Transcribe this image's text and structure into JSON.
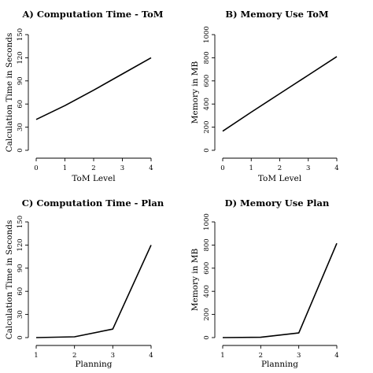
{
  "chart_data": [
    {
      "type": "line",
      "title": "A) Computation Time - ToM",
      "xlabel": "ToM Level",
      "ylabel": "Calculation Time in Seconds",
      "x": [
        0,
        1,
        2,
        3,
        4
      ],
      "xticks": [
        "0",
        "1",
        "2",
        "3",
        "4"
      ],
      "xlim": [
        0,
        4
      ],
      "yticks": [
        "0",
        "30",
        "60",
        "90",
        "120",
        "150"
      ],
      "ylim": [
        0,
        150
      ],
      "series": [
        {
          "values": [
            40,
            58,
            78,
            99,
            120
          ]
        }
      ],
      "grid": false
    },
    {
      "type": "line",
      "title": "B) Memory Use ToM",
      "xlabel": "ToM Level",
      "ylabel": "Memory in MB",
      "x": [
        0,
        1,
        2,
        3,
        4
      ],
      "xticks": [
        "0",
        "1",
        "2",
        "3",
        "4"
      ],
      "xlim": [
        0,
        4
      ],
      "yticks": [
        "0",
        "200",
        "400",
        "600",
        "800",
        "1000"
      ],
      "ylim": [
        0,
        1000
      ],
      "series": [
        {
          "values": [
            165,
            330,
            490,
            650,
            810
          ]
        }
      ],
      "grid": false
    },
    {
      "type": "line",
      "title": "C) Computation Time - Plan",
      "xlabel": "Planning",
      "ylabel": "Calculation Time in Seconds",
      "x": [
        1,
        2,
        3,
        4
      ],
      "xticks": [
        "1",
        "2",
        "3",
        "4"
      ],
      "xlim": [
        1,
        4
      ],
      "yticks": [
        "0",
        "30",
        "60",
        "90",
        "120",
        "150"
      ],
      "ylim": [
        0,
        150
      ],
      "series": [
        {
          "values": [
            0,
            1,
            11,
            120
          ]
        }
      ],
      "grid": false
    },
    {
      "type": "line",
      "title": "D) Memory Use Plan",
      "xlabel": "Planning",
      "ylabel": "Memory in MB",
      "x": [
        1,
        2,
        3,
        4
      ],
      "xticks": [
        "1",
        "2",
        "3",
        "4"
      ],
      "xlim": [
        1,
        4
      ],
      "yticks": [
        "0",
        "200",
        "400",
        "600",
        "800",
        "1000"
      ],
      "ylim": [
        0,
        1000
      ],
      "series": [
        {
          "values": [
            0,
            3,
            40,
            815
          ]
        }
      ],
      "grid": false
    }
  ]
}
